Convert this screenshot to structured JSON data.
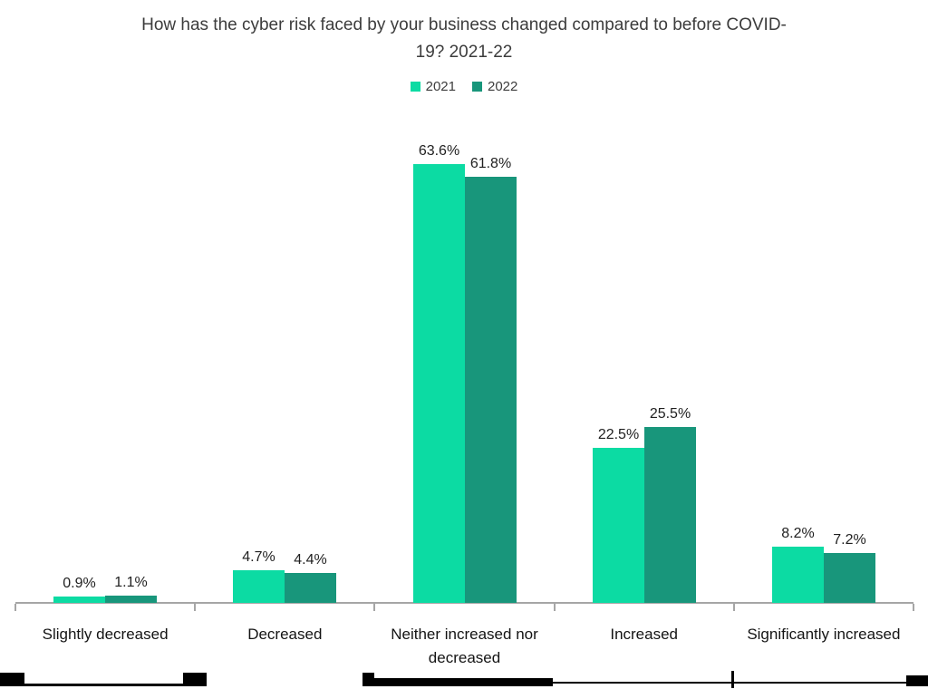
{
  "chart_data": {
    "type": "bar",
    "title": "How has the cyber risk faced by your business changed compared to before COVID-19? 2021-22",
    "title_lines": [
      "How has the cyber risk faced by your business changed compared to before COVID-",
      "19? 2021-22"
    ],
    "categories": [
      "Slightly decreased",
      "Decreased",
      "Neither increased nor decreased",
      "Increased",
      "Significantly increased"
    ],
    "series": [
      {
        "name": "2021",
        "color": "#0cdba3",
        "values": [
          0.9,
          4.7,
          63.6,
          22.5,
          8.2
        ]
      },
      {
        "name": "2022",
        "color": "#18967b",
        "values": [
          1.1,
          4.4,
          61.8,
          25.5,
          7.2
        ]
      }
    ],
    "value_suffix": "%",
    "data_labels": [
      "0.9%",
      "1.1%",
      "4.7%",
      "4.4%",
      "63.6%",
      "61.8%",
      "22.5%",
      "25.5%",
      "8.2%",
      "7.2%"
    ],
    "legend_position": "top",
    "grid": false,
    "y_axis_visible": false,
    "ylim": [
      0,
      70
    ],
    "axis_color": "#a6a6a6"
  }
}
